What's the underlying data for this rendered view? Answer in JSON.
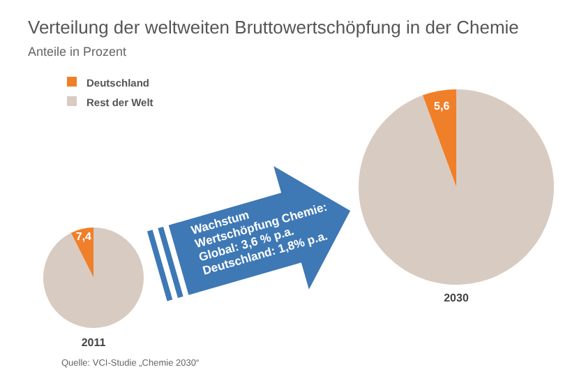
{
  "chart_data": [
    {
      "type": "pie",
      "title": "Verteilung der weltweiten Bruttowertschöpfung in der Chemie",
      "subtitle": "Anteile in Prozent",
      "xlabel": "2011",
      "categories": [
        "Deutschland",
        "Rest der Welt"
      ],
      "values": [
        7.4,
        92.6
      ],
      "colors": [
        "#f07f2a",
        "#d8cbc2"
      ],
      "value_labels": [
        "7,4",
        null
      ],
      "legend": "top right",
      "annotations": [
        "Wachstum\nWertschöpfung Chemie:\nGlobal: 3,6 % p.a.\nDeutschland: 1,8% p.a.",
        "Quelle: VCI-Studie „Chemie 2030“"
      ]
    },
    {
      "type": "pie",
      "xlabel": "2030",
      "categories": [
        null,
        null
      ],
      "values": [
        5.6,
        94.4
      ],
      "colors": [
        "#f07f2a",
        "#d8cbc2"
      ],
      "value_labels": [
        "5,6",
        null
      ]
    }
  ]
}
